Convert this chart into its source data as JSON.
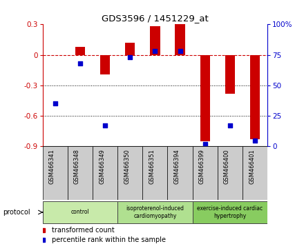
{
  "title": "GDS3596 / 1451229_at",
  "samples": [
    "GSM466341",
    "GSM466348",
    "GSM466349",
    "GSM466350",
    "GSM466351",
    "GSM466394",
    "GSM466399",
    "GSM466400",
    "GSM466401"
  ],
  "red_values": [
    0.0,
    0.08,
    -0.19,
    0.12,
    0.28,
    0.3,
    -0.85,
    -0.38,
    -0.83
  ],
  "blue_values_pct": [
    35,
    68,
    17,
    73,
    78,
    78,
    2,
    17,
    5
  ],
  "ylim_left": [
    -0.9,
    0.3
  ],
  "ylim_right": [
    0,
    100
  ],
  "yticks_left": [
    0.3,
    0.0,
    -0.3,
    -0.6,
    -0.9
  ],
  "yticks_right": [
    100,
    75,
    50,
    25,
    0
  ],
  "groups": [
    {
      "label": "control",
      "start": 0,
      "end": 3,
      "color": "#c8eaaa"
    },
    {
      "label": "isoproterenol-induced\ncardiomyopathy",
      "start": 3,
      "end": 6,
      "color": "#b0e090"
    },
    {
      "label": "exercise-induced cardiac\nhypertrophy",
      "start": 6,
      "end": 9,
      "color": "#88cc60"
    }
  ],
  "bar_color_red": "#cc0000",
  "bar_color_blue": "#0000cc",
  "hline_color": "#cc0000",
  "dotline_color": "#000000",
  "bar_width": 0.4,
  "blue_square_size": 25,
  "bg_color": "#ffffff",
  "label_bg": "#cccccc"
}
